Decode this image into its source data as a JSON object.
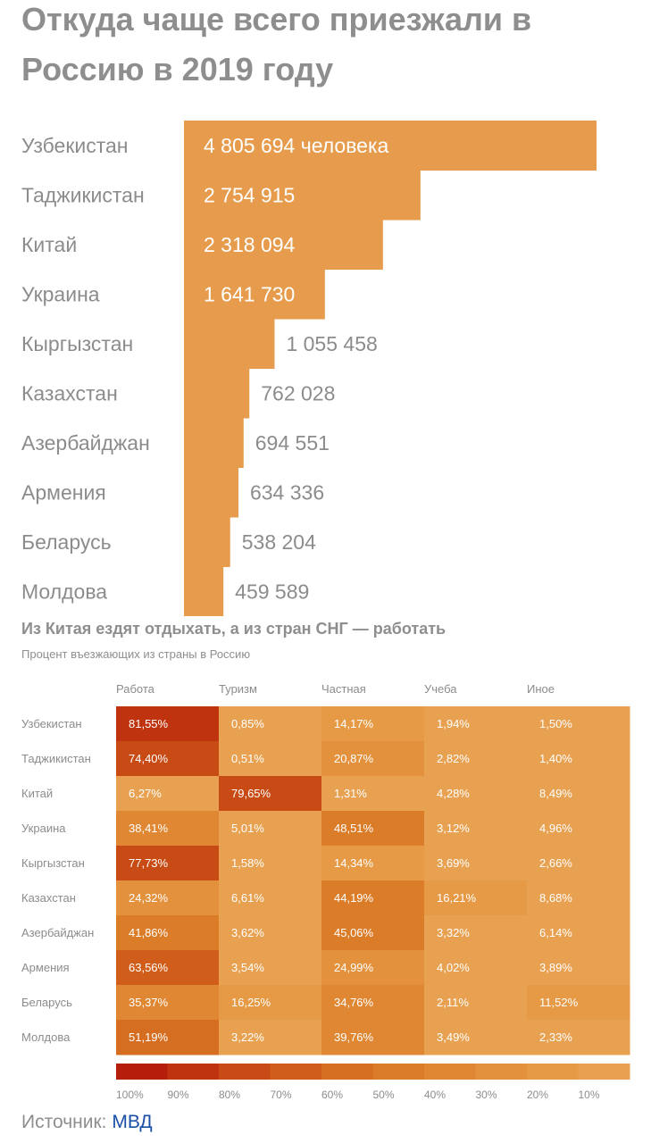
{
  "title": "Откуда чаще всего приезжали в Россию в 2019 году",
  "subtitle": "Из Китая ездят отдыхать, а из стран СНГ — работать",
  "caption": "Процент въезжающих из страны в Россию",
  "source": {
    "label": "Источник:",
    "link": "МВД"
  },
  "colors": {
    "bar": "#e69c4c",
    "text_inside": "#ffffff",
    "text_outside": "#8c8c8c",
    "scale": [
      "#b41e0a",
      "#bf340e",
      "#c84a14",
      "#d05e1a",
      "#d66e21",
      "#db7c29",
      "#df8732",
      "#e3913c",
      "#e69a46",
      "#e8a150"
    ]
  },
  "chart_data": [
    {
      "type": "bar",
      "orientation": "horizontal",
      "title": "Откуда чаще всего приезжали в Россию в 2019 году",
      "categories": [
        "Узбекистан",
        "Таджикистан",
        "Китай",
        "Украина",
        "Кыргызстан",
        "Казахстан",
        "Азербайджан",
        "Армения",
        "Беларусь",
        "Молдова"
      ],
      "values": [
        4805694,
        2754915,
        2318094,
        1641730,
        1055458,
        762028,
        694551,
        634336,
        538204,
        459589
      ],
      "labels": [
        "4 805 694 человека",
        "2 754 915",
        "2 318 094",
        "1 641 730",
        "1 055 458",
        "762 028",
        "694 551",
        "634 336",
        "538 204",
        "459 589"
      ],
      "xlim": [
        0,
        4805694
      ]
    },
    {
      "type": "heatmap",
      "title": "Из Китая ездят отдыхать, а из стран СНГ — работать",
      "subtitle": "Процент въезжающих из страны в Россию",
      "columns": [
        "Работа",
        "Туризм",
        "Частная",
        "Учеба",
        "Иное"
      ],
      "rows": [
        "Узбекистан",
        "Таджикистан",
        "Китай",
        "Украина",
        "Кыргызстан",
        "Казахстан",
        "Азербайджан",
        "Армения",
        "Беларусь",
        "Молдова"
      ],
      "values": [
        [
          81.55,
          0.85,
          14.17,
          1.94,
          1.5
        ],
        [
          74.4,
          0.51,
          20.87,
          2.82,
          1.4
        ],
        [
          6.27,
          79.65,
          1.31,
          4.28,
          8.49
        ],
        [
          38.41,
          5.01,
          48.51,
          3.12,
          4.96
        ],
        [
          77.73,
          1.58,
          14.34,
          3.69,
          2.66
        ],
        [
          24.32,
          6.61,
          44.19,
          16.21,
          8.68
        ],
        [
          41.86,
          3.62,
          45.06,
          3.32,
          6.14
        ],
        [
          63.56,
          3.54,
          24.99,
          4.02,
          3.89
        ],
        [
          35.37,
          16.25,
          34.76,
          2.11,
          11.52
        ],
        [
          51.19,
          3.22,
          39.76,
          3.49,
          2.33
        ]
      ],
      "cell_labels": [
        [
          "81,55%",
          "0,85%",
          "14,17%",
          "1,94%",
          "1,50%"
        ],
        [
          "74,40%",
          "0,51%",
          "20,87%",
          "2,82%",
          "1,40%"
        ],
        [
          "6,27%",
          "79,65%",
          "1,31%",
          "4,28%",
          "8,49%"
        ],
        [
          "38,41%",
          "5,01%",
          "48,51%",
          "3,12%",
          "4,96%"
        ],
        [
          "77,73%",
          "1,58%",
          "14,34%",
          "3,69%",
          "2,66%"
        ],
        [
          "24,32%",
          "6,61%",
          "44,19%",
          "16,21%",
          "8,68%"
        ],
        [
          "41,86%",
          "3,62%",
          "45,06%",
          "3,32%",
          "6,14%"
        ],
        [
          "63,56%",
          "3,54%",
          "24,99%",
          "4,02%",
          "3,89%"
        ],
        [
          "35,37%",
          "16,25%",
          "34,76%",
          "2,11%",
          "11,52%"
        ],
        [
          "51,19%",
          "3,22%",
          "39,76%",
          "3,49%",
          "2,33%"
        ]
      ],
      "scale_ticks": [
        "100%",
        "90%",
        "80%",
        "70%",
        "60%",
        "50%",
        "40%",
        "30%",
        "20%",
        "10%"
      ]
    }
  ]
}
